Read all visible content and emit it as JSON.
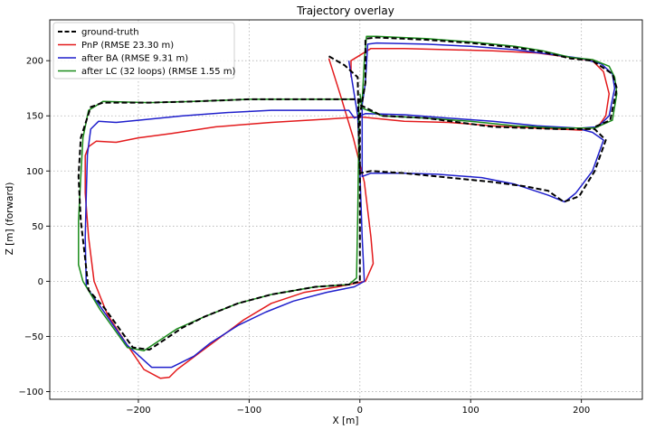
{
  "chart_data": {
    "type": "line",
    "title": "Trajectory overlay",
    "xlabel": "X [m]",
    "ylabel": "Z [m]  (forward)",
    "xlim": [
      -280,
      255
    ],
    "ylim": [
      -107,
      237
    ],
    "xticks": [
      -200,
      -100,
      0,
      100,
      200
    ],
    "yticks": [
      -100,
      -50,
      0,
      50,
      100,
      150,
      200
    ],
    "xtick_labels": [
      "−200",
      "−100",
      "0",
      "100",
      "200"
    ],
    "ytick_labels": [
      "−100",
      "−50",
      "0",
      "50",
      "100",
      "150",
      "200"
    ],
    "grid": true,
    "legend_position": "top-left",
    "series": [
      {
        "name": "ground-truth",
        "color": "#000000",
        "style": "dashed",
        "points": [
          [
            -28,
            204
          ],
          [
            -14,
            196
          ],
          [
            -2,
            185
          ],
          [
            -1,
            130
          ],
          [
            0,
            98
          ],
          [
            10,
            100
          ],
          [
            40,
            98
          ],
          [
            80,
            94
          ],
          [
            120,
            90
          ],
          [
            150,
            86
          ],
          [
            170,
            82
          ],
          [
            184,
            72
          ],
          [
            198,
            77
          ],
          [
            212,
            100
          ],
          [
            222,
            128
          ],
          [
            212,
            138
          ],
          [
            180,
            138
          ],
          [
            120,
            140
          ],
          [
            60,
            148
          ],
          [
            20,
            150
          ],
          [
            0,
            160
          ],
          [
            0,
            165
          ],
          [
            -50,
            165
          ],
          [
            -100,
            165
          ],
          [
            -150,
            163
          ],
          [
            -190,
            162
          ],
          [
            -232,
            162
          ],
          [
            -243,
            158
          ],
          [
            -252,
            130
          ],
          [
            -254,
            95
          ],
          [
            -252,
            55
          ],
          [
            -248,
            20
          ],
          [
            -245,
            -8
          ],
          [
            -230,
            -25
          ],
          [
            -205,
            -60
          ],
          [
            -190,
            -62
          ],
          [
            -160,
            -42
          ],
          [
            -140,
            -32
          ],
          [
            -110,
            -20
          ],
          [
            -80,
            -12
          ],
          [
            -40,
            -5
          ],
          [
            -10,
            -3
          ],
          [
            0,
            0
          ],
          [
            0,
            100
          ],
          [
            0,
            150
          ],
          [
            2,
            163
          ],
          [
            5,
            180
          ],
          [
            5,
            220
          ],
          [
            15,
            221
          ],
          [
            60,
            219
          ],
          [
            100,
            216
          ],
          [
            140,
            212
          ],
          [
            165,
            208
          ],
          [
            190,
            202
          ],
          [
            210,
            200
          ],
          [
            228,
            188
          ],
          [
            232,
            175
          ],
          [
            226,
            146
          ],
          [
            212,
            140
          ]
        ]
      },
      {
        "name": "PnP (RMSE 23.30 m)",
        "color": "#e31a1c",
        "style": "solid",
        "points": [
          [
            -28,
            202
          ],
          [
            -18,
            170
          ],
          [
            -6,
            130
          ],
          [
            4,
            90
          ],
          [
            10,
            40
          ],
          [
            12,
            16
          ],
          [
            5,
            0
          ],
          [
            -20,
            -5
          ],
          [
            -50,
            -10
          ],
          [
            -80,
            -20
          ],
          [
            -105,
            -35
          ],
          [
            -125,
            -50
          ],
          [
            -145,
            -65
          ],
          [
            -165,
            -80
          ],
          [
            -172,
            -87
          ],
          [
            -180,
            -88
          ],
          [
            -195,
            -80
          ],
          [
            -212,
            -55
          ],
          [
            -228,
            -30
          ],
          [
            -240,
            0
          ],
          [
            -245,
            40
          ],
          [
            -248,
            80
          ],
          [
            -248,
            114
          ],
          [
            -245,
            122
          ],
          [
            -238,
            127
          ],
          [
            -220,
            126
          ],
          [
            -200,
            130
          ],
          [
            -170,
            134
          ],
          [
            -130,
            140
          ],
          [
            -80,
            144
          ],
          [
            -30,
            147
          ],
          [
            0,
            149
          ],
          [
            40,
            145
          ],
          [
            80,
            144
          ],
          [
            120,
            141
          ],
          [
            160,
            139
          ],
          [
            200,
            137
          ],
          [
            215,
            140
          ],
          [
            222,
            150
          ],
          [
            225,
            170
          ],
          [
            220,
            190
          ],
          [
            210,
            200
          ],
          [
            190,
            203
          ],
          [
            160,
            207
          ],
          [
            120,
            209
          ],
          [
            80,
            210
          ],
          [
            40,
            211
          ],
          [
            10,
            211
          ],
          [
            -8,
            200
          ],
          [
            -8,
            185
          ]
        ]
      },
      {
        "name": "after BA (RMSE 9.31 m)",
        "color": "#1f1fcc",
        "style": "solid",
        "points": [
          [
            -10,
            200
          ],
          [
            -2,
            150
          ],
          [
            0,
            100
          ],
          [
            2,
            40
          ],
          [
            4,
            0
          ],
          [
            -5,
            -5
          ],
          [
            -30,
            -10
          ],
          [
            -60,
            -18
          ],
          [
            -85,
            -28
          ],
          [
            -110,
            -40
          ],
          [
            -135,
            -56
          ],
          [
            -150,
            -68
          ],
          [
            -170,
            -78
          ],
          [
            -188,
            -78
          ],
          [
            -210,
            -58
          ],
          [
            -235,
            -22
          ],
          [
            -247,
            -5
          ],
          [
            -248,
            40
          ],
          [
            -247,
            80
          ],
          [
            -246,
            115
          ],
          [
            -243,
            138
          ],
          [
            -236,
            145
          ],
          [
            -220,
            144
          ],
          [
            -200,
            146
          ],
          [
            -160,
            150
          ],
          [
            -120,
            153
          ],
          [
            -80,
            155
          ],
          [
            -40,
            155
          ],
          [
            -10,
            155
          ],
          [
            -5,
            148
          ],
          [
            5,
            152
          ],
          [
            40,
            151
          ],
          [
            80,
            148
          ],
          [
            120,
            145
          ],
          [
            160,
            141
          ],
          [
            195,
            139
          ],
          [
            210,
            135
          ],
          [
            220,
            128
          ],
          [
            210,
            100
          ],
          [
            195,
            80
          ],
          [
            185,
            72
          ],
          [
            170,
            78
          ],
          [
            140,
            88
          ],
          [
            110,
            94
          ],
          [
            70,
            97
          ],
          [
            40,
            98
          ],
          [
            10,
            98
          ],
          [
            2,
            95
          ],
          [
            2,
            130
          ],
          [
            2,
            160
          ],
          [
            5,
            180
          ],
          [
            7,
            215
          ],
          [
            15,
            216
          ],
          [
            60,
            215
          ],
          [
            100,
            213
          ],
          [
            140,
            210
          ],
          [
            170,
            206
          ],
          [
            200,
            202
          ],
          [
            218,
            197
          ],
          [
            228,
            188
          ],
          [
            230,
            175
          ],
          [
            225,
            150
          ],
          [
            215,
            140
          ],
          [
            200,
            139
          ]
        ]
      },
      {
        "name": "after LC (32 loops) (RMSE 1.55 m)",
        "color": "#1a8c1a",
        "style": "solid",
        "points": [
          [
            -5,
            165
          ],
          [
            -50,
            165
          ],
          [
            -100,
            165
          ],
          [
            -150,
            163
          ],
          [
            -190,
            162
          ],
          [
            -232,
            163
          ],
          [
            -245,
            155
          ],
          [
            -250,
            130
          ],
          [
            -252,
            95
          ],
          [
            -254,
            55
          ],
          [
            -254,
            15
          ],
          [
            -250,
            0
          ],
          [
            -235,
            -25
          ],
          [
            -210,
            -60
          ],
          [
            -195,
            -63
          ],
          [
            -165,
            -43
          ],
          [
            -140,
            -32
          ],
          [
            -110,
            -20
          ],
          [
            -80,
            -12
          ],
          [
            -40,
            -5
          ],
          [
            -10,
            -3
          ],
          [
            -3,
            3
          ],
          [
            -2,
            60
          ],
          [
            -1,
            130
          ],
          [
            -1,
            165
          ],
          [
            2,
            163
          ],
          [
            4,
            200
          ],
          [
            6,
            222
          ],
          [
            15,
            222
          ],
          [
            60,
            220
          ],
          [
            100,
            217
          ],
          [
            140,
            213
          ],
          [
            165,
            209
          ],
          [
            190,
            203
          ],
          [
            210,
            201
          ],
          [
            225,
            195
          ],
          [
            230,
            185
          ],
          [
            232,
            170
          ],
          [
            228,
            146
          ],
          [
            212,
            139
          ],
          [
            180,
            139
          ],
          [
            140,
            141
          ],
          [
            100,
            145
          ],
          [
            60,
            148
          ],
          [
            20,
            150
          ],
          [
            2,
            157
          ],
          [
            0,
            170
          ]
        ]
      }
    ]
  }
}
